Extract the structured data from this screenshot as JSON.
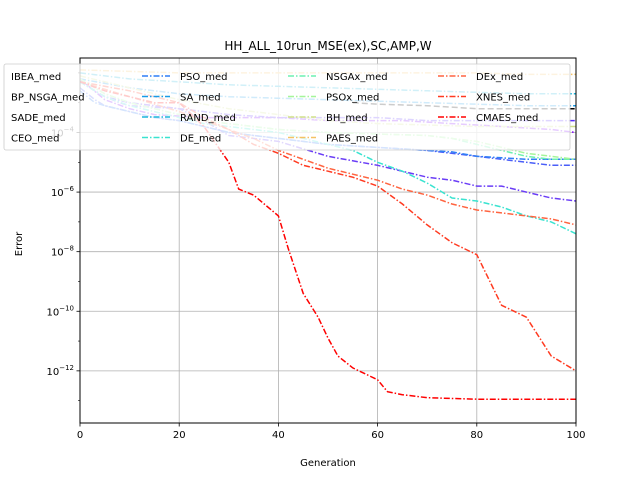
{
  "chart_data": {
    "type": "line",
    "title": "HH_ALL_10run_MSE(ex),SC,AMP,W",
    "xlabel": "Generation",
    "ylabel": "Error",
    "xlim": [
      0,
      100
    ],
    "ylim_log10": [
      -13.75,
      -1.5
    ],
    "yscale": "log",
    "grid": true,
    "legend_placement": "top (over plot)",
    "x_ticks": [
      "0",
      "20",
      "40",
      "60",
      "80",
      "100"
    ],
    "y_tick_exponents": [
      -12,
      -10,
      -8,
      -6,
      -4
    ],
    "y_tick_base": "10",
    "series": [
      {
        "name": "IBEA_med",
        "color": "#8000ff",
        "points": [
          [
            0,
            -2.2
          ],
          [
            5,
            -2.9
          ],
          [
            10,
            -3.2
          ],
          [
            15,
            -3.4
          ],
          [
            20,
            -3.45
          ],
          [
            25,
            -3.5
          ],
          [
            30,
            -3.5
          ],
          [
            35,
            -3.5
          ],
          [
            40,
            -3.5
          ],
          [
            45,
            -3.55
          ],
          [
            50,
            -3.6
          ],
          [
            55,
            -3.6
          ],
          [
            60,
            -3.6
          ],
          [
            65,
            -3.6
          ],
          [
            70,
            -3.65
          ],
          [
            75,
            -3.7
          ],
          [
            80,
            -3.75
          ],
          [
            85,
            -3.8
          ],
          [
            90,
            -3.85
          ],
          [
            95,
            -3.9
          ],
          [
            100,
            -4.0
          ]
        ]
      },
      {
        "name": "BP_NSGA_med",
        "color": "#5a2ffd",
        "points": [
          [
            0,
            -2.3
          ],
          [
            5,
            -2.8
          ],
          [
            10,
            -3.0
          ],
          [
            15,
            -3.1
          ],
          [
            20,
            -3.2
          ],
          [
            25,
            -3.3
          ],
          [
            30,
            -3.4
          ],
          [
            35,
            -3.45
          ],
          [
            40,
            -3.5
          ],
          [
            45,
            -3.5
          ],
          [
            50,
            -3.5
          ],
          [
            55,
            -3.5
          ],
          [
            60,
            -3.5
          ],
          [
            65,
            -3.55
          ],
          [
            70,
            -3.6
          ],
          [
            75,
            -3.6
          ],
          [
            80,
            -3.6
          ],
          [
            85,
            -3.6
          ],
          [
            90,
            -3.6
          ],
          [
            95,
            -3.6
          ],
          [
            100,
            -3.6
          ]
        ]
      },
      {
        "name": "SADE_med",
        "color": "#6a3df6",
        "points": [
          [
            0,
            -2.3
          ],
          [
            5,
            -2.8
          ],
          [
            8,
            -3.0
          ],
          [
            10,
            -3.1
          ],
          [
            20,
            -3.2
          ],
          [
            25,
            -3.6
          ],
          [
            30,
            -4.1
          ],
          [
            40,
            -4.3
          ],
          [
            50,
            -4.8
          ],
          [
            60,
            -5.1
          ],
          [
            70,
            -5.5
          ],
          [
            75,
            -5.6
          ],
          [
            80,
            -5.8
          ],
          [
            85,
            -5.8
          ],
          [
            90,
            -6.0
          ],
          [
            95,
            -6.2
          ],
          [
            100,
            -6.3
          ]
        ]
      },
      {
        "name": "CEO_med",
        "color": "#4a5ef8",
        "points": [
          [
            0,
            -2.5
          ],
          [
            3,
            -2.9
          ],
          [
            5,
            -3.1
          ],
          [
            10,
            -3.3
          ],
          [
            15,
            -3.5
          ],
          [
            20,
            -3.6
          ],
          [
            25,
            -3.8
          ],
          [
            30,
            -4.0
          ],
          [
            35,
            -4.1
          ],
          [
            40,
            -4.2
          ],
          [
            45,
            -4.3
          ],
          [
            50,
            -4.4
          ],
          [
            60,
            -4.5
          ],
          [
            70,
            -4.6
          ],
          [
            80,
            -4.8
          ],
          [
            85,
            -4.9
          ],
          [
            90,
            -5.0
          ],
          [
            95,
            -5.1
          ],
          [
            100,
            -5.1
          ]
        ]
      },
      {
        "name": "PSO_med",
        "color": "#2f7ff6",
        "points": [
          [
            0,
            -2.6
          ],
          [
            3,
            -3.0
          ],
          [
            5,
            -3.1
          ],
          [
            10,
            -3.3
          ],
          [
            15,
            -3.5
          ],
          [
            20,
            -3.6
          ],
          [
            25,
            -3.8
          ],
          [
            30,
            -4.0
          ],
          [
            35,
            -4.1
          ],
          [
            40,
            -4.2
          ],
          [
            45,
            -4.3
          ],
          [
            50,
            -4.4
          ],
          [
            55,
            -4.45
          ],
          [
            60,
            -4.5
          ],
          [
            65,
            -4.55
          ],
          [
            70,
            -4.6
          ],
          [
            75,
            -4.65
          ],
          [
            80,
            -4.8
          ],
          [
            85,
            -4.85
          ],
          [
            90,
            -4.9
          ],
          [
            95,
            -4.9
          ],
          [
            100,
            -4.9
          ]
        ]
      },
      {
        "name": "SA_med",
        "color": "#189be8",
        "points": [
          [
            0,
            -2.2
          ],
          [
            10,
            -2.5
          ],
          [
            20,
            -2.7
          ],
          [
            30,
            -2.8
          ],
          [
            40,
            -2.85
          ],
          [
            50,
            -2.9
          ],
          [
            60,
            -2.95
          ],
          [
            70,
            -3.0
          ],
          [
            80,
            -3.05
          ],
          [
            90,
            -3.1
          ],
          [
            100,
            -3.1
          ]
        ]
      },
      {
        "name": "RAND_med",
        "color": "#1cb5dc",
        "points": [
          [
            0,
            -2.0
          ],
          [
            10,
            -2.2
          ],
          [
            20,
            -2.3
          ],
          [
            30,
            -2.4
          ],
          [
            40,
            -2.45
          ],
          [
            50,
            -2.5
          ],
          [
            60,
            -2.55
          ],
          [
            70,
            -2.6
          ],
          [
            80,
            -2.65
          ],
          [
            90,
            -2.7
          ],
          [
            100,
            -2.7
          ]
        ]
      },
      {
        "name": "DE_med",
        "color": "#3ae3d0",
        "points": [
          [
            0,
            -2.3
          ],
          [
            5,
            -2.8
          ],
          [
            10,
            -3.1
          ],
          [
            15,
            -3.3
          ],
          [
            20,
            -3.5
          ],
          [
            25,
            -3.7
          ],
          [
            30,
            -3.8
          ],
          [
            35,
            -3.9
          ],
          [
            40,
            -4.0
          ],
          [
            45,
            -4.2
          ],
          [
            50,
            -4.4
          ],
          [
            55,
            -4.6
          ],
          [
            60,
            -5.0
          ],
          [
            65,
            -5.3
          ],
          [
            70,
            -5.7
          ],
          [
            75,
            -6.2
          ],
          [
            80,
            -6.3
          ],
          [
            85,
            -6.5
          ],
          [
            90,
            -6.8
          ],
          [
            95,
            -7.0
          ],
          [
            100,
            -7.4
          ]
        ]
      },
      {
        "name": "NSGAx_med",
        "color": "#6df0b0",
        "points": [
          [
            0,
            -2.2
          ],
          [
            5,
            -2.7
          ],
          [
            10,
            -3.0
          ],
          [
            15,
            -3.2
          ],
          [
            20,
            -3.4
          ],
          [
            25,
            -3.6
          ],
          [
            30,
            -3.7
          ],
          [
            40,
            -3.9
          ],
          [
            50,
            -4.0
          ],
          [
            60,
            -4.05
          ],
          [
            70,
            -4.1
          ],
          [
            75,
            -4.2
          ],
          [
            80,
            -4.4
          ],
          [
            85,
            -4.6
          ],
          [
            90,
            -4.8
          ],
          [
            95,
            -4.9
          ],
          [
            100,
            -4.9
          ]
        ]
      },
      {
        "name": "PSOx_med",
        "color": "#a5f59a",
        "points": [
          [
            0,
            -2.2
          ],
          [
            5,
            -2.7
          ],
          [
            10,
            -3.0
          ],
          [
            15,
            -3.2
          ],
          [
            20,
            -3.4
          ],
          [
            25,
            -3.6
          ],
          [
            30,
            -3.7
          ],
          [
            40,
            -3.9
          ],
          [
            50,
            -4.0
          ],
          [
            60,
            -4.05
          ],
          [
            70,
            -4.1
          ],
          [
            80,
            -4.3
          ],
          [
            85,
            -4.5
          ],
          [
            90,
            -4.7
          ],
          [
            95,
            -4.8
          ],
          [
            100,
            -4.9
          ]
        ]
      },
      {
        "name": "BH_med",
        "color": "#d0e08a",
        "points": [
          [
            0,
            -2.1
          ],
          [
            10,
            -2.5
          ],
          [
            20,
            -2.9
          ],
          [
            30,
            -3.2
          ],
          [
            40,
            -3.4
          ],
          [
            50,
            -3.6
          ],
          [
            60,
            -3.7
          ],
          [
            70,
            -3.75
          ],
          [
            80,
            -3.8
          ],
          [
            90,
            -3.8
          ],
          [
            100,
            -3.8
          ]
        ]
      },
      {
        "name": "PAES_med",
        "color": "#f5c264",
        "points": [
          [
            0,
            -1.9
          ],
          [
            10,
            -1.95
          ],
          [
            20,
            -2.0
          ],
          [
            30,
            -2.0
          ],
          [
            40,
            -2.0
          ],
          [
            50,
            -2.0
          ],
          [
            60,
            -2.0
          ],
          [
            70,
            -2.0
          ],
          [
            80,
            -2.0
          ],
          [
            90,
            -2.05
          ],
          [
            100,
            -2.05
          ]
        ]
      },
      {
        "name": "DEx_med",
        "color": "#ff6440",
        "points": [
          [
            0,
            -2.3
          ],
          [
            10,
            -2.8
          ],
          [
            20,
            -3.3
          ],
          [
            25,
            -3.6
          ],
          [
            30,
            -3.9
          ],
          [
            35,
            -4.2
          ],
          [
            40,
            -4.6
          ],
          [
            45,
            -4.9
          ],
          [
            50,
            -5.2
          ],
          [
            55,
            -5.4
          ],
          [
            60,
            -5.6
          ],
          [
            65,
            -5.9
          ],
          [
            70,
            -6.1
          ],
          [
            75,
            -6.4
          ],
          [
            80,
            -6.6
          ],
          [
            85,
            -6.7
          ],
          [
            90,
            -6.8
          ],
          [
            95,
            -6.9
          ],
          [
            100,
            -7.1
          ]
        ]
      },
      {
        "name": "XNES_med",
        "color": "#ff3a20",
        "points": [
          [
            0,
            -2.3
          ],
          [
            10,
            -2.6
          ],
          [
            20,
            -3.0
          ],
          [
            25,
            -3.5
          ],
          [
            30,
            -3.9
          ],
          [
            35,
            -4.4
          ],
          [
            40,
            -4.7
          ],
          [
            45,
            -5.1
          ],
          [
            50,
            -5.3
          ],
          [
            55,
            -5.5
          ],
          [
            60,
            -5.8
          ],
          [
            65,
            -6.4
          ],
          [
            70,
            -7.1
          ],
          [
            75,
            -7.7
          ],
          [
            80,
            -8.1
          ],
          [
            85,
            -9.8
          ],
          [
            90,
            -10.2
          ],
          [
            95,
            -11.5
          ],
          [
            100,
            -12.0
          ]
        ]
      },
      {
        "name": "CMAES_med",
        "color": "#ff0000",
        "points": [
          [
            0,
            -2.3
          ],
          [
            5,
            -2.6
          ],
          [
            10,
            -2.8
          ],
          [
            15,
            -3.0
          ],
          [
            20,
            -3.0
          ],
          [
            25,
            -3.8
          ],
          [
            30,
            -5.0
          ],
          [
            32,
            -5.9
          ],
          [
            35,
            -6.1
          ],
          [
            40,
            -6.8
          ],
          [
            42,
            -7.9
          ],
          [
            45,
            -9.4
          ],
          [
            48,
            -10.2
          ],
          [
            50,
            -10.9
          ],
          [
            52,
            -11.5
          ],
          [
            55,
            -11.9
          ],
          [
            60,
            -12.3
          ],
          [
            62,
            -12.7
          ],
          [
            65,
            -12.8
          ],
          [
            70,
            -12.9
          ],
          [
            80,
            -12.95
          ],
          [
            90,
            -12.95
          ],
          [
            100,
            -12.95
          ]
        ]
      },
      {
        "name": "",
        "color": "#000000",
        "points": [
          [
            55,
            -3.0
          ],
          [
            60,
            -3.05
          ],
          [
            70,
            -3.1
          ],
          [
            80,
            -3.2
          ],
          [
            90,
            -3.2
          ],
          [
            100,
            -3.2
          ]
        ]
      }
    ]
  }
}
